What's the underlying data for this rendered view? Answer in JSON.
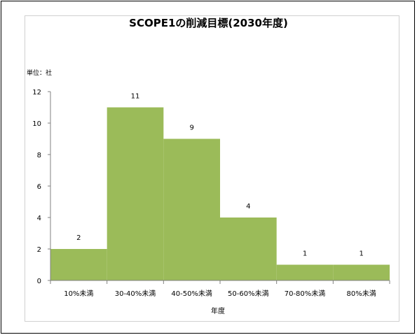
{
  "chart_data": {
    "type": "bar",
    "title": "SCOPE1の削減目標(2030年度)",
    "unit_label": "単位：社",
    "xlabel": "年度",
    "ylabel": "",
    "categories": [
      "10%未満",
      "30-40%未満",
      "40-50%未満",
      "50-60%未満",
      "70-80%未満",
      "80%未満"
    ],
    "values": [
      2,
      11,
      9,
      4,
      1,
      1
    ],
    "ylim": [
      0,
      12
    ],
    "yticks": [
      0,
      2,
      4,
      6,
      8,
      10,
      12
    ],
    "bar_color": "#9bbb59",
    "grid": false,
    "legend": "none"
  }
}
